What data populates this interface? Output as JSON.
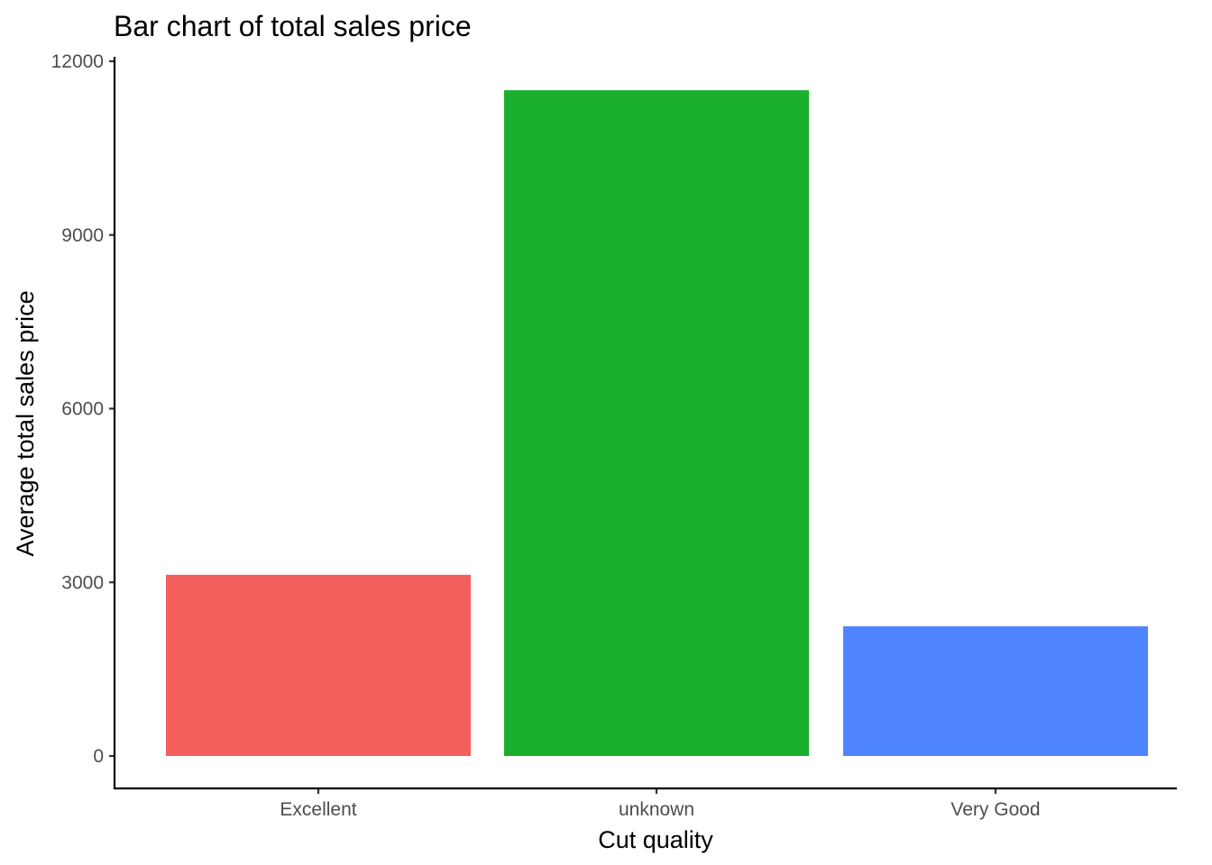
{
  "chart_data": {
    "type": "bar",
    "title": "Bar chart of total sales price",
    "xlabel": "Cut quality",
    "ylabel": "Average total sales price",
    "categories": [
      "Excellent",
      "unknown",
      "Very Good"
    ],
    "values": [
      3130,
      11500,
      2240
    ],
    "colors": [
      "#F8766D",
      "#00BA38",
      "#619CFF"
    ],
    "bar_colors_rendered": [
      "#F25F5C",
      "#1AB02E",
      "#4F86FF"
    ],
    "ylim": [
      0,
      12000
    ],
    "yticks": [
      "0",
      "3000",
      "6000",
      "9000",
      "12000"
    ],
    "grid": false,
    "legend": "none"
  }
}
